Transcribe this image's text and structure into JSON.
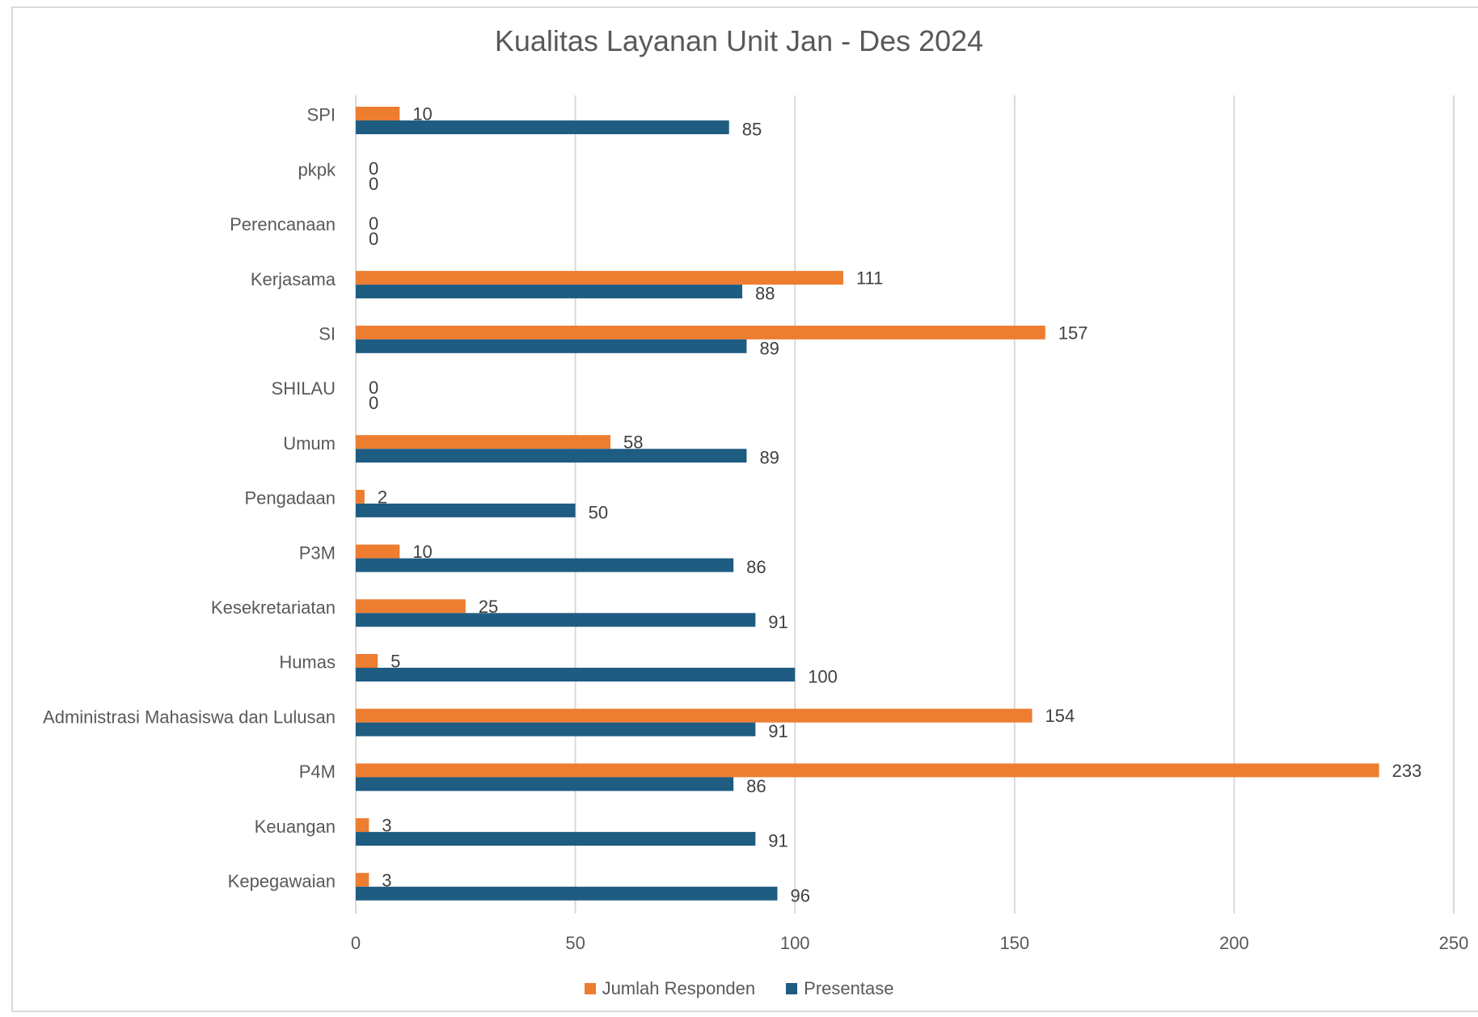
{
  "chart_data": {
    "type": "bar",
    "orientation": "horizontal",
    "title": "Kualitas Layanan Unit  Jan - Des 2024",
    "categories": [
      "SPI",
      "pkpk",
      "Perencanaan",
      "Kerjasama",
      "SI",
      "SHILAU",
      "Umum",
      "Pengadaan",
      "P3M",
      "Kesekretariatan",
      "Humas",
      "Administrasi Mahasiswa dan Lulusan",
      "P4M",
      "Keuangan",
      "Kepegawaian"
    ],
    "series": [
      {
        "name": "Jumlah Responden",
        "color": "#ed7d31",
        "values": [
          10,
          0,
          0,
          111,
          157,
          0,
          58,
          2,
          10,
          25,
          5,
          154,
          233,
          3,
          3
        ]
      },
      {
        "name": "Presentase",
        "color": "#1f5c82",
        "values": [
          85,
          0,
          0,
          88,
          89,
          0,
          89,
          50,
          86,
          91,
          100,
          91,
          86,
          91,
          96
        ]
      }
    ],
    "xlim": [
      0,
      250
    ],
    "xticks": [
      "0",
      "50",
      "100",
      "150",
      "200",
      "250"
    ],
    "grid": true,
    "legend": "bottom"
  }
}
